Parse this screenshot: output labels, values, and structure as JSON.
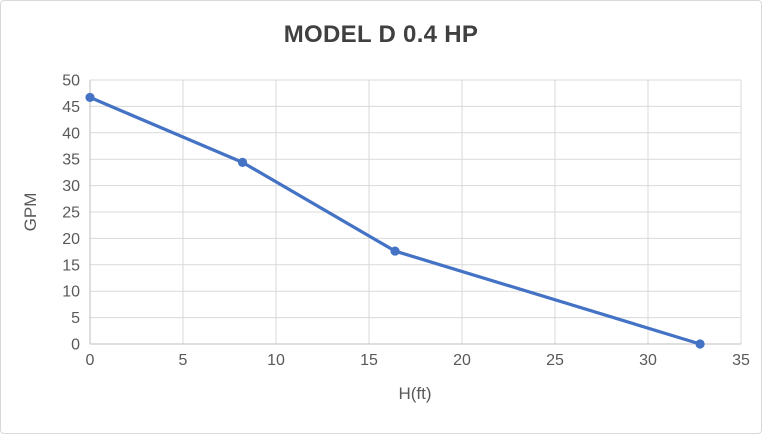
{
  "window": {
    "background": "#ffffff",
    "border_color": "#d9d9d9"
  },
  "chart_data": {
    "type": "line",
    "title": "MODEL D 0.4 HP",
    "xlabel": "H(ft)",
    "ylabel": "GPM",
    "series": [
      {
        "name": "MODEL D 0.4 HP",
        "x": [
          0,
          8.2,
          16.4,
          32.8
        ],
        "y": [
          46.7,
          34.4,
          17.6,
          0
        ],
        "color": "#4472C4",
        "marker": "circle"
      }
    ],
    "xlim": [
      0,
      35
    ],
    "ylim": [
      0,
      50
    ],
    "xticks": [
      0,
      5,
      10,
      15,
      20,
      25,
      30,
      35
    ],
    "yticks": [
      0,
      5,
      10,
      15,
      20,
      25,
      30,
      35,
      40,
      45,
      50
    ],
    "grid": true,
    "legend": "none",
    "styles": {
      "grid_color": "#d9d9d9",
      "axis_color": "#bfbfbf",
      "tick_label_color": "#595959",
      "axis_title_color": "#595959",
      "title_color": "#404040",
      "line_width": 3.25,
      "marker_radius": 4.6,
      "tick_font_size": 16
    }
  }
}
